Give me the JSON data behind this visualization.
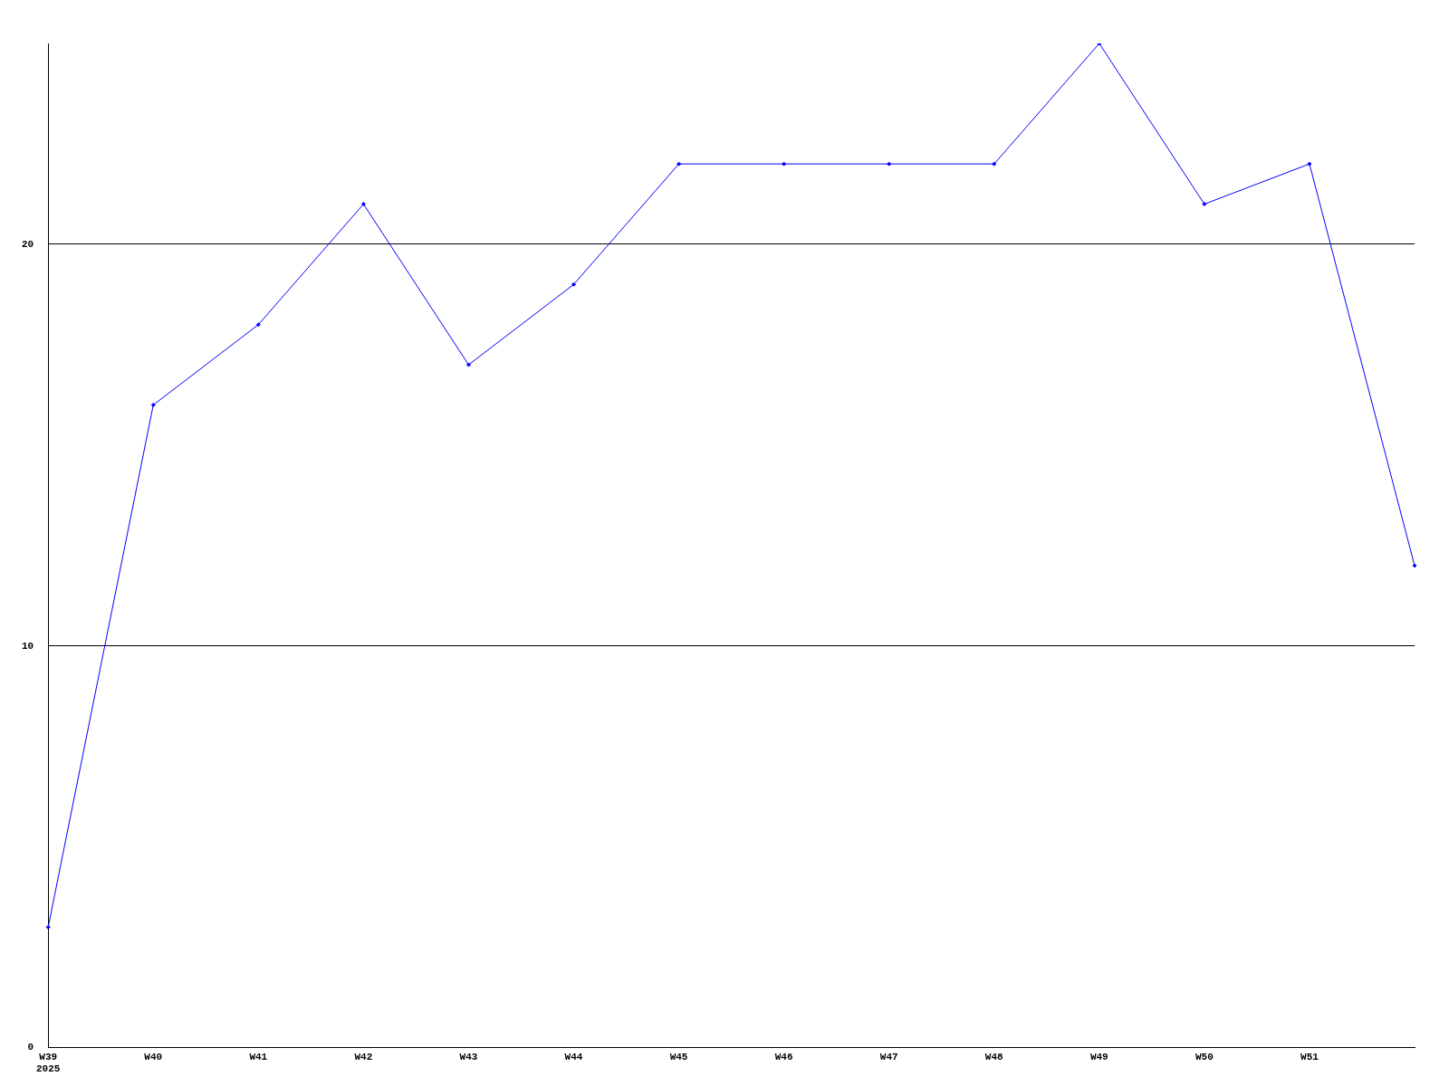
{
  "chart_data": {
    "type": "line",
    "categories": [
      "W39\n2025",
      "W40",
      "W41",
      "W42",
      "W43",
      "W44",
      "W45",
      "W46",
      "W47",
      "W48",
      "W49",
      "W50",
      "W51",
      null
    ],
    "series": [
      {
        "color": "#0000ff",
        "values": [
          3,
          16,
          18,
          21,
          17,
          19,
          22,
          22,
          22,
          22,
          25,
          21,
          22,
          12
        ]
      }
    ],
    "ylim": [
      0,
      25
    ],
    "yticks": [
      0,
      10,
      20
    ],
    "grid": "y",
    "legend": false,
    "marker": "diamond",
    "line_style": "solid"
  }
}
